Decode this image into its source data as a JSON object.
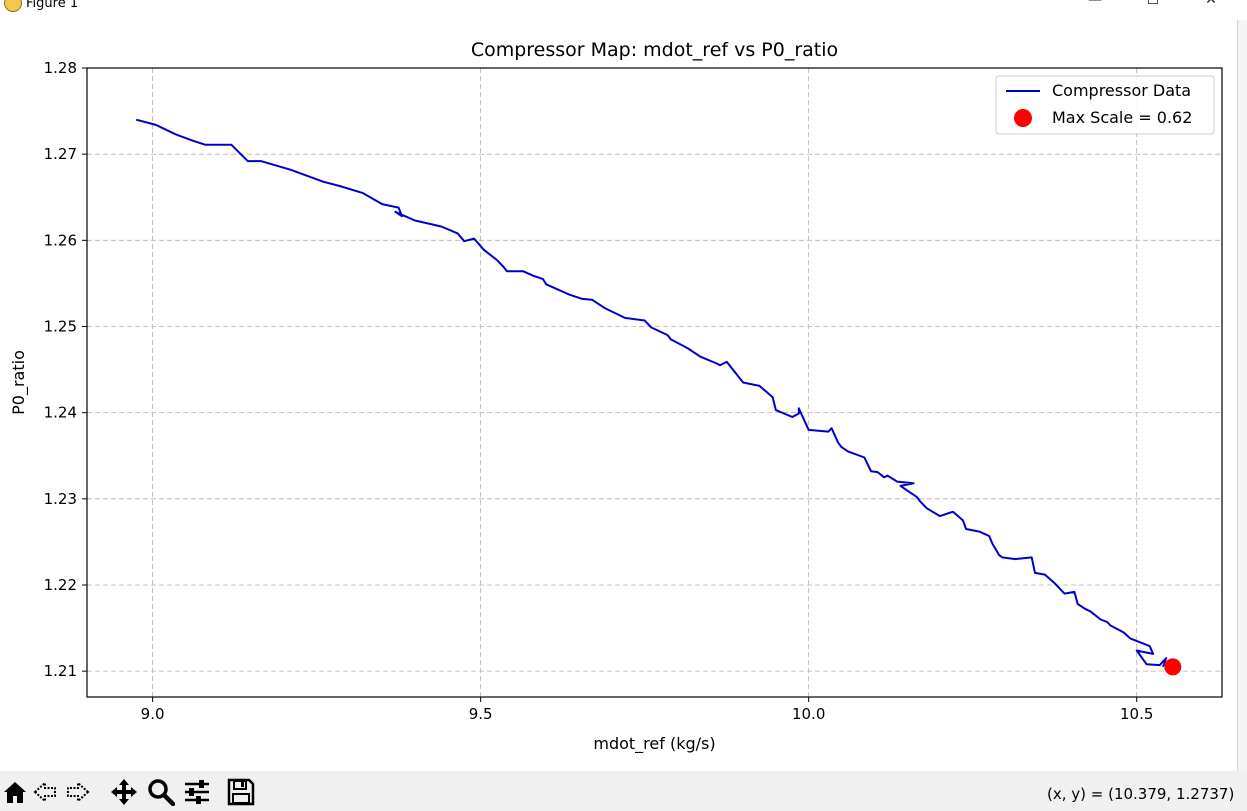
{
  "window": {
    "title": "Figure 1",
    "controls": {
      "minimize": "—",
      "maximize": "☐",
      "close": "✕"
    }
  },
  "toolbar": {
    "tools": [
      "home-icon",
      "back-icon",
      "forward-icon",
      "pan-icon",
      "zoom-icon",
      "configure-subplots-icon",
      "save-icon"
    ],
    "coordinate_readout": "(x, y) = (10.379, 1.2737)"
  },
  "chart_data": {
    "type": "line",
    "title": "Compressor Map: mdot_ref vs P0_ratio",
    "xlabel": "mdot_ref (kg/s)",
    "ylabel": "P0_ratio",
    "xlim": [
      8.9,
      10.63
    ],
    "ylim": [
      1.207,
      1.28
    ],
    "xticks": [
      9.0,
      9.5,
      10.0,
      10.5
    ],
    "xtick_labels": [
      "9.0",
      "9.5",
      "10.0",
      "10.5"
    ],
    "yticks": [
      1.21,
      1.22,
      1.23,
      1.24,
      1.25,
      1.26,
      1.27,
      1.28
    ],
    "ytick_labels": [
      "1.21",
      "1.22",
      "1.23",
      "1.24",
      "1.25",
      "1.26",
      "1.27",
      "1.28"
    ],
    "grid": true,
    "legend_position": "top-right",
    "series": [
      {
        "name": "Compressor Data",
        "color": "#0000cc",
        "x": [
          8.975,
          9.005,
          9.035,
          9.06,
          9.08,
          9.09,
          9.12,
          9.145,
          9.165,
          9.21,
          9.26,
          9.285,
          9.32,
          9.35,
          9.375,
          9.38,
          9.37,
          9.4,
          9.44,
          9.465,
          9.475,
          9.49,
          9.505,
          9.525,
          9.535,
          9.54,
          9.565,
          9.58,
          9.595,
          9.6,
          9.635,
          9.655,
          9.67,
          9.69,
          9.72,
          9.75,
          9.76,
          9.785,
          9.79,
          9.815,
          9.835,
          9.86,
          9.865,
          9.875,
          9.9,
          9.925,
          9.945,
          9.95,
          9.975,
          9.985,
          9.985,
          10.0,
          10.03,
          10.035,
          10.045,
          10.05,
          10.06,
          10.085,
          10.095,
          10.105,
          10.115,
          10.12,
          10.135,
          10.16,
          10.14,
          10.165,
          10.17,
          10.18,
          10.2,
          10.22,
          10.235,
          10.24,
          10.26,
          10.275,
          10.28,
          10.29,
          10.295,
          10.315,
          10.34,
          10.345,
          10.36,
          10.375,
          10.39,
          10.405,
          10.41,
          10.42,
          10.43,
          10.445,
          10.455,
          10.46,
          10.48,
          10.49,
          10.51,
          10.52,
          10.525,
          10.5,
          10.515,
          10.535,
          10.545,
          10.54
        ],
        "y": [
          1.274,
          1.2734,
          1.2723,
          1.2716,
          1.2711,
          1.2711,
          1.2711,
          1.2692,
          1.2692,
          1.2682,
          1.2668,
          1.2663,
          1.2655,
          1.2642,
          1.2638,
          1.2628,
          1.2633,
          1.2623,
          1.2616,
          1.2608,
          1.2599,
          1.2602,
          1.2589,
          1.2577,
          1.2569,
          1.2564,
          1.2564,
          1.2559,
          1.2555,
          1.2549,
          1.2537,
          1.2532,
          1.2531,
          1.2521,
          1.251,
          1.2507,
          1.2499,
          1.249,
          1.2485,
          1.2475,
          1.2465,
          1.2457,
          1.2455,
          1.2459,
          1.2435,
          1.2431,
          1.2418,
          1.2403,
          1.2395,
          1.2399,
          1.2405,
          1.238,
          1.2378,
          1.2382,
          1.2365,
          1.236,
          1.2355,
          1.2348,
          1.2332,
          1.2331,
          1.2325,
          1.2327,
          1.232,
          1.2318,
          1.2315,
          1.2302,
          1.2297,
          1.2289,
          1.228,
          1.2285,
          1.2275,
          1.2265,
          1.2262,
          1.2257,
          1.2248,
          1.2235,
          1.2232,
          1.223,
          1.2232,
          1.2214,
          1.2212,
          1.2202,
          1.219,
          1.2192,
          1.2178,
          1.2173,
          1.2169,
          1.216,
          1.2157,
          1.2153,
          1.2145,
          1.2138,
          1.2132,
          1.2129,
          1.212,
          1.2124,
          1.2108,
          1.2107,
          1.2115,
          1.2105
        ]
      }
    ],
    "marker": {
      "label": "Max Scale = 0.62",
      "color": "#ff0000",
      "x": 10.555,
      "y": 1.2105
    }
  }
}
